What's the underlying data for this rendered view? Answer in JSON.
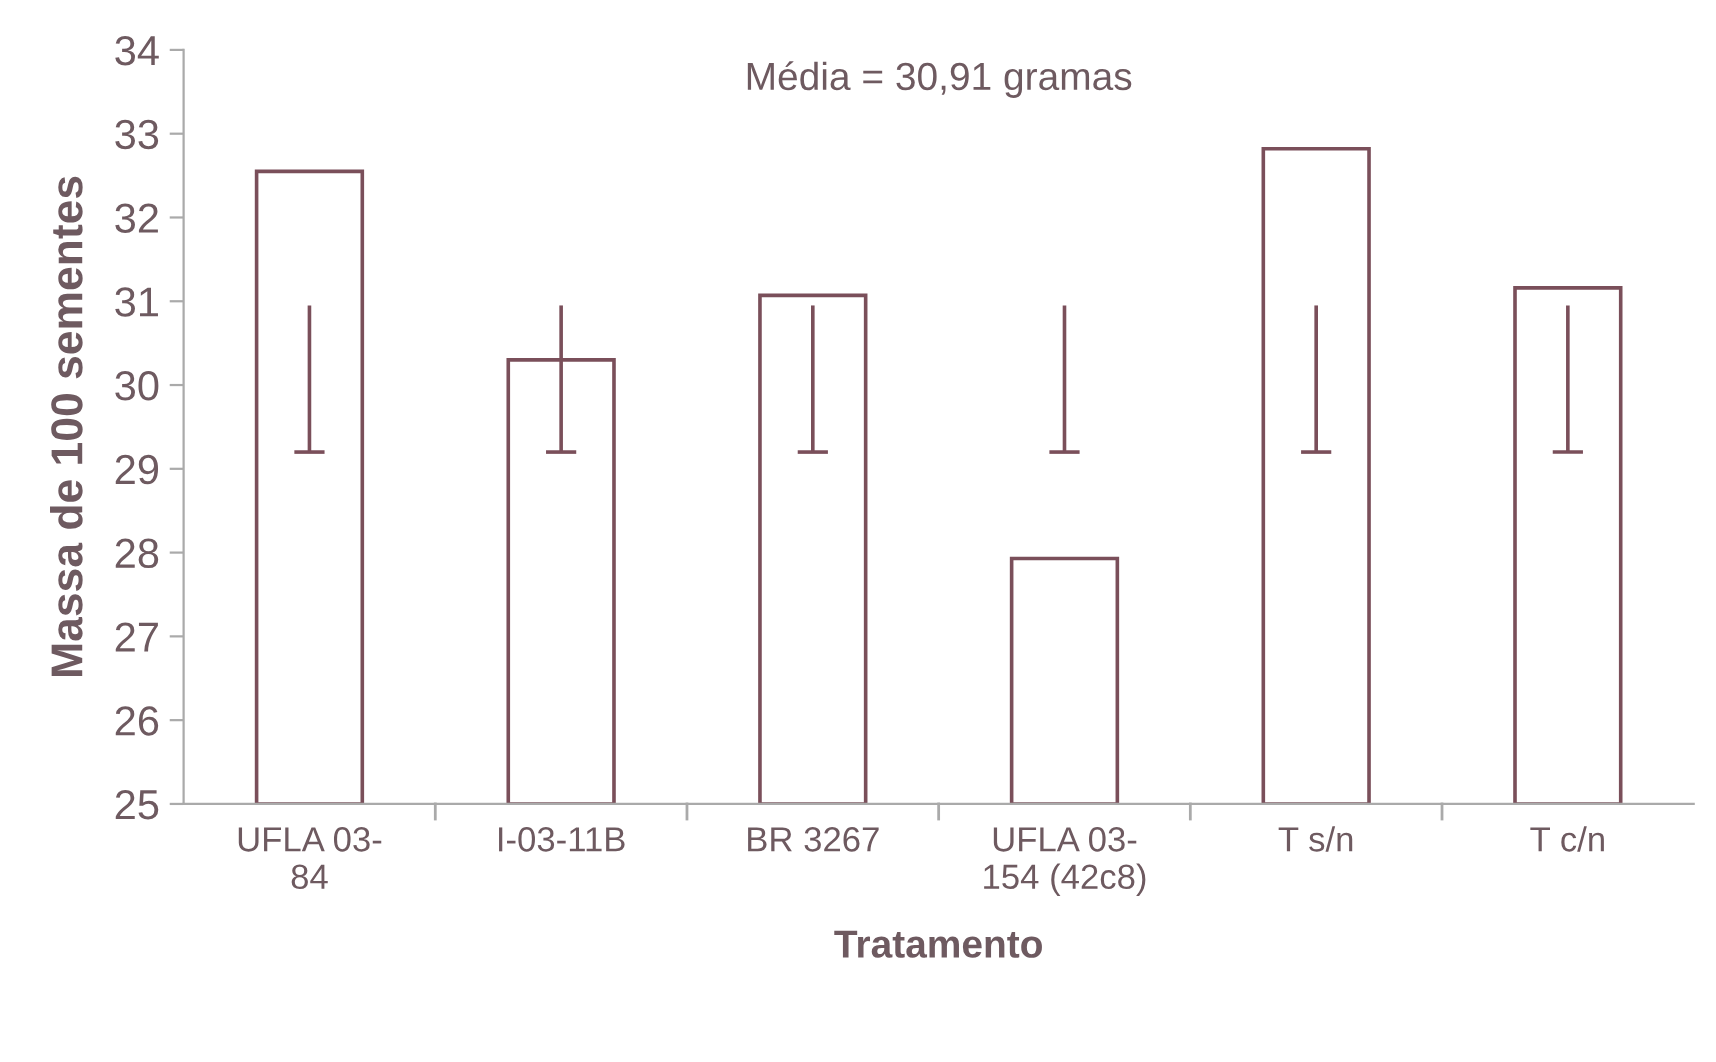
{
  "chart_data": {
    "type": "bar",
    "categories": [
      "UFLA 03-\n84",
      "I-03-11B",
      "BR 3267",
      "UFLA 03-\n154 (42c8)",
      "T s/n",
      "T c/n"
    ],
    "values": [
      32.55,
      30.3,
      31.07,
      27.93,
      32.82,
      31.16
    ],
    "errors": [
      [
        29.2,
        30.95
      ],
      [
        29.2,
        30.95
      ],
      [
        29.2,
        30.95
      ],
      [
        29.2,
        30.95
      ],
      [
        29.2,
        30.95
      ],
      [
        29.2,
        30.95
      ]
    ],
    "color": "#7a4f5a",
    "xlabel": "Tratamento",
    "ylabel": "Massa de 100 sementes",
    "annotations": [
      "Média = 30,91 gramas"
    ],
    "ylim": [
      25,
      34
    ],
    "yticks": [
      25,
      26,
      27,
      28,
      29,
      30,
      31,
      32,
      33,
      34
    ],
    "grid": false
  }
}
